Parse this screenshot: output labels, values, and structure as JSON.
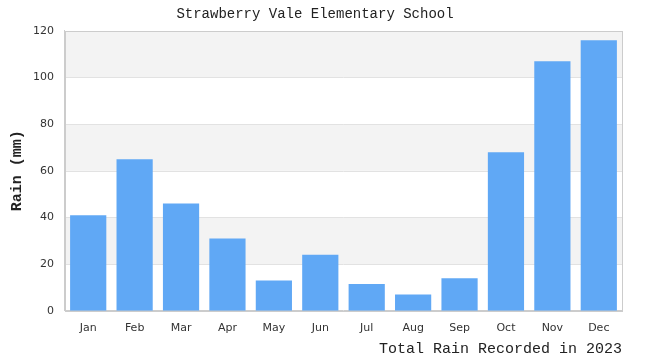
{
  "chart_data": {
    "type": "bar",
    "title": "Strawberry Vale Elementary School",
    "ylabel": "Rain (mm)",
    "xlabel": "Total Rain Recorded in 2023",
    "categories": [
      "Jan",
      "Feb",
      "Mar",
      "Apr",
      "May",
      "Jun",
      "Jul",
      "Aug",
      "Sep",
      "Oct",
      "Nov",
      "Dec"
    ],
    "values": [
      41,
      65,
      46,
      31,
      13,
      24,
      11.5,
      7,
      14,
      68,
      107,
      116
    ],
    "color": "#60a8f5",
    "ylim": [
      0,
      120
    ],
    "yticks": [
      0,
      20,
      40,
      60,
      80,
      100,
      120
    ],
    "grid": true
  }
}
